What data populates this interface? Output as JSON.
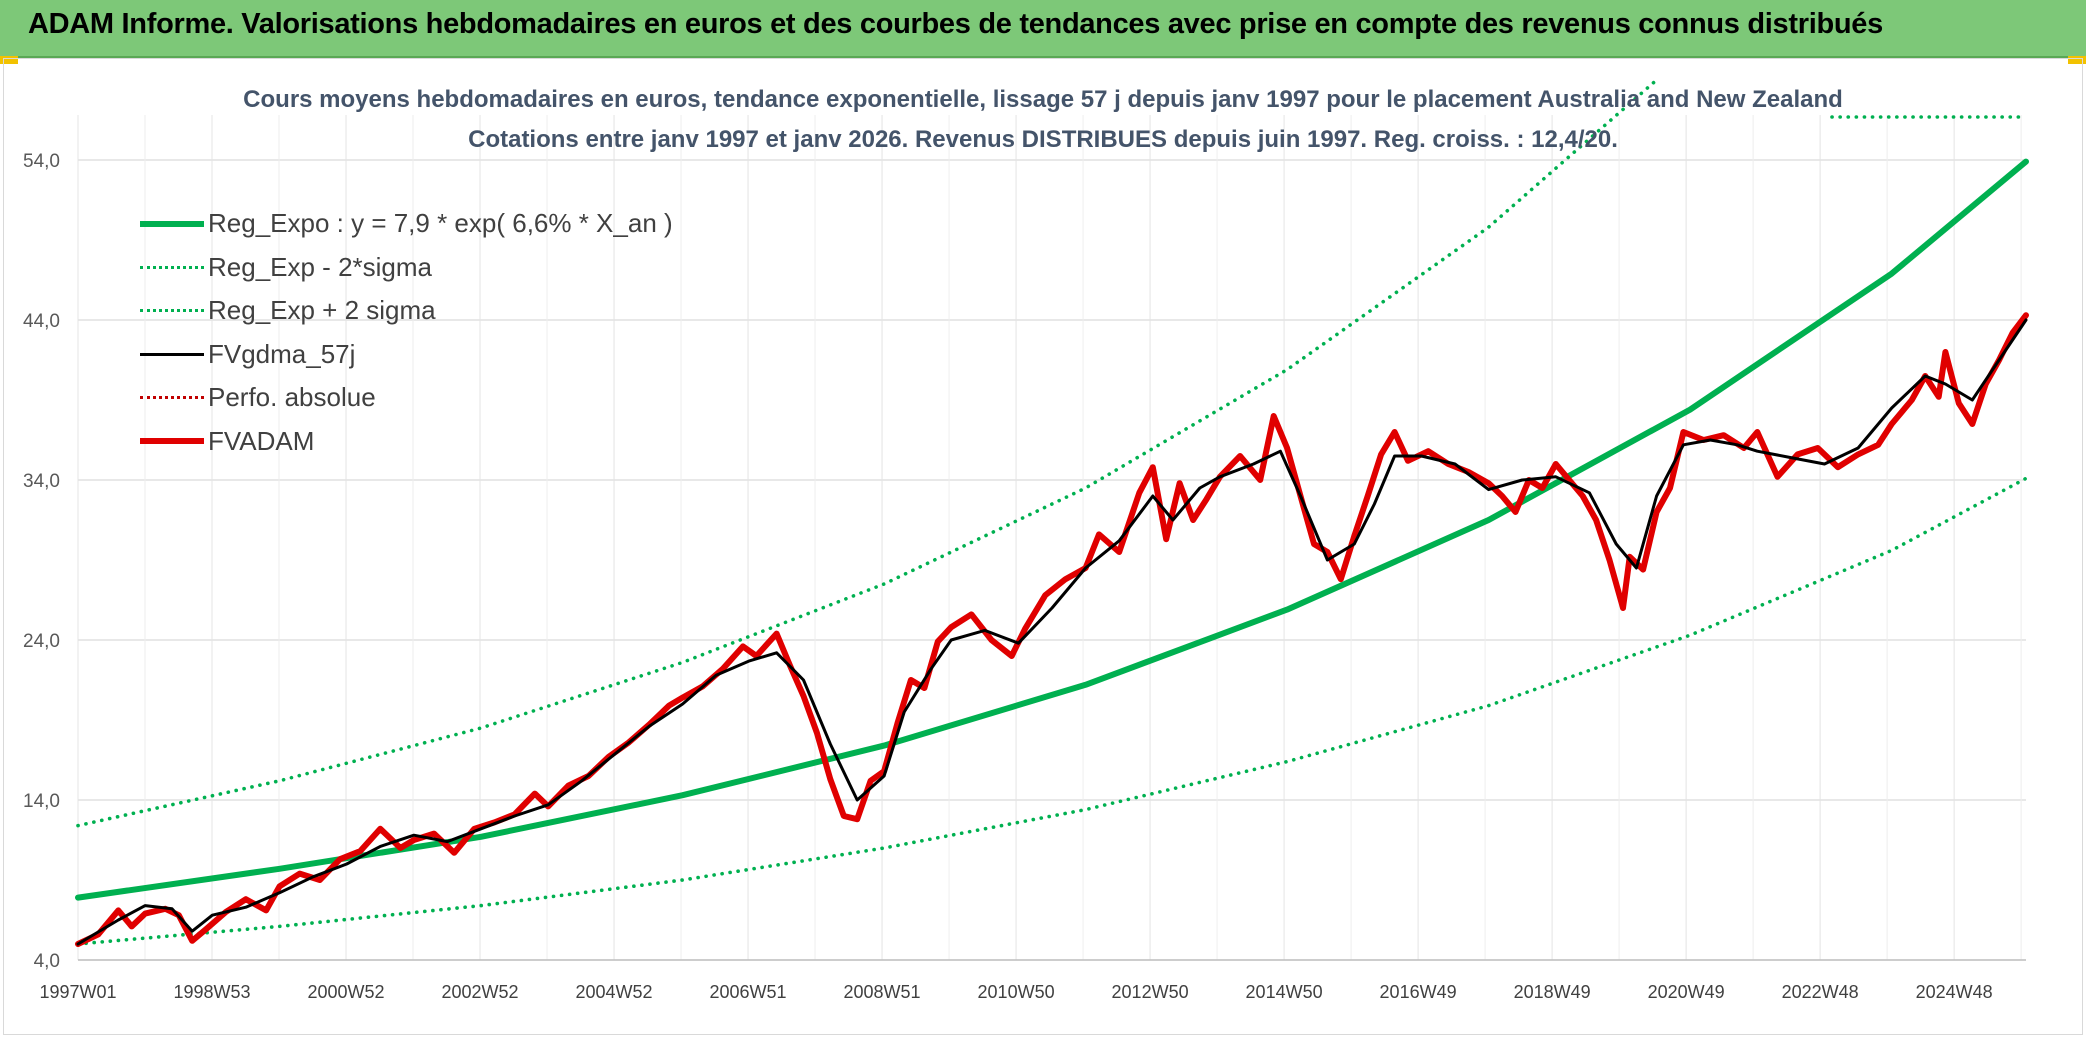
{
  "banner": {
    "title": "ADAM Informe. Valorisations hebdomadaires en euros et des courbes de tendances avec prise en compte des revenus connus distribués"
  },
  "chart_data": {
    "type": "line",
    "title": "Cours moyens hebdomadaires en euros, tendance exponentielle, lissage 57 j depuis janv 1997 pour le placement Australia and New Zealand",
    "subtitle": "Cotations entre janv 1997 et janv 2026. Revenus DISTRIBUES depuis juin 1997. Reg. croiss. : 12,4/20.",
    "xlabel": "",
    "ylabel": "",
    "x_ticks": [
      "1997W01",
      "1998W53",
      "2000W52",
      "2002W52",
      "2004W52",
      "2006W51",
      "2008W51",
      "2010W50",
      "2012W50",
      "2014W50",
      "2016W49",
      "2018W49",
      "2020W49",
      "2022W48",
      "2024W48"
    ],
    "x_range": [
      1997.0,
      2026.0
    ],
    "y_ticks": [
      "4,0",
      "14,0",
      "24,0",
      "34,0",
      "44,0",
      "54,0"
    ],
    "ylim": [
      4,
      57
    ],
    "grid": true,
    "legend_position": "top-left",
    "series": [
      {
        "name": "Reg_Expo : y = 7,9 * exp( 6,6% *  X_an )",
        "style": "solid-thick",
        "color": "#00b050",
        "x": [
          1997.0,
          2000.0,
          2003.0,
          2006.0,
          2009.0,
          2012.0,
          2015.0,
          2018.0,
          2021.0,
          2024.0,
          2026.0
        ],
        "values": [
          7.9,
          9.7,
          11.7,
          14.3,
          17.4,
          21.2,
          25.9,
          31.5,
          38.4,
          46.9,
          53.9
        ]
      },
      {
        "name": "Reg_Exp - 2*sigma",
        "style": "dotted",
        "color": "#00b050",
        "x": [
          1997.0,
          2000.0,
          2003.0,
          2006.0,
          2009.0,
          2012.0,
          2015.0,
          2018.0,
          2021.0,
          2024.0,
          2026.0
        ],
        "values": [
          5.0,
          6.1,
          7.4,
          9.0,
          11.0,
          13.4,
          16.4,
          19.9,
          24.3,
          29.6,
          34.1
        ]
      },
      {
        "name": "Reg_Exp + 2 sigma",
        "style": "dotted",
        "color": "#00b050",
        "x": [
          1997.0,
          2000.0,
          2003.0,
          2006.0,
          2009.0,
          2012.0,
          2015.0,
          2018.0,
          2020.5
        ],
        "values": [
          12.4,
          15.2,
          18.5,
          22.6,
          27.5,
          33.5,
          40.9,
          49.8,
          59.0
        ]
      },
      {
        "name": "FVgdma_57j",
        "style": "solid",
        "color": "#000000",
        "x": [
          1997.0,
          1997.6,
          1998.0,
          1998.4,
          1998.7,
          1999.0,
          1999.5,
          2000.0,
          2000.5,
          2001.0,
          2001.5,
          2002.0,
          2002.5,
          2003.0,
          2003.5,
          2004.0,
          2004.5,
          2005.0,
          2005.5,
          2006.0,
          2006.5,
          2007.0,
          2007.4,
          2007.8,
          2008.2,
          2008.6,
          2009.0,
          2009.3,
          2009.7,
          2010.0,
          2010.5,
          2011.0,
          2011.5,
          2012.0,
          2012.5,
          2013.0,
          2013.3,
          2013.7,
          2014.0,
          2014.5,
          2014.9,
          2015.2,
          2015.6,
          2016.0,
          2016.3,
          2016.6,
          2017.0,
          2017.5,
          2018.0,
          2018.5,
          2019.0,
          2019.5,
          2019.9,
          2020.2,
          2020.5,
          2020.9,
          2021.3,
          2021.7,
          2022.0,
          2022.5,
          2023.0,
          2023.5,
          2024.0,
          2024.5,
          2024.8,
          2025.2,
          2025.6,
          2026.0
        ],
        "values": [
          5.0,
          6.5,
          7.4,
          7.2,
          5.8,
          6.8,
          7.3,
          8.2,
          9.2,
          10.0,
          11.1,
          11.8,
          11.4,
          12.2,
          13.0,
          13.7,
          15.2,
          16.9,
          18.6,
          20.0,
          21.8,
          22.7,
          23.2,
          21.5,
          17.5,
          14.0,
          15.5,
          19.5,
          22.2,
          24.0,
          24.6,
          23.8,
          26.0,
          28.5,
          30.2,
          33.0,
          31.5,
          33.5,
          34.2,
          35.0,
          35.8,
          33.0,
          29.0,
          30.0,
          32.5,
          35.5,
          35.5,
          35.0,
          33.4,
          34.0,
          34.2,
          33.2,
          30.0,
          28.5,
          33.0,
          36.2,
          36.5,
          36.2,
          35.8,
          35.4,
          35.0,
          36.0,
          38.5,
          40.5,
          40.0,
          39.0,
          41.5,
          44.0
        ]
      },
      {
        "name": "Perfo. absolue",
        "style": "dotted",
        "color": "#c00000",
        "x": [],
        "values": []
      },
      {
        "name": "FVADAM",
        "style": "solid-thick",
        "color": "#e00000",
        "x": [
          1997.0,
          1997.3,
          1997.6,
          1997.8,
          1998.0,
          1998.3,
          1998.5,
          1998.7,
          1998.9,
          1999.2,
          1999.5,
          1999.8,
          2000.0,
          2000.3,
          2000.6,
          2000.9,
          2001.2,
          2001.5,
          2001.8,
          2002.0,
          2002.3,
          2002.6,
          2002.9,
          2003.2,
          2003.5,
          2003.8,
          2004.0,
          2004.3,
          2004.6,
          2004.9,
          2005.2,
          2005.5,
          2005.8,
          2006.0,
          2006.3,
          2006.6,
          2006.9,
          2007.1,
          2007.4,
          2007.6,
          2007.8,
          2008.0,
          2008.2,
          2008.4,
          2008.6,
          2008.8,
          2009.0,
          2009.2,
          2009.4,
          2009.6,
          2009.8,
          2010.0,
          2010.3,
          2010.6,
          2010.9,
          2011.1,
          2011.4,
          2011.7,
          2012.0,
          2012.2,
          2012.5,
          2012.8,
          2013.0,
          2013.2,
          2013.4,
          2013.6,
          2013.8,
          2014.0,
          2014.3,
          2014.6,
          2014.8,
          2015.0,
          2015.2,
          2015.4,
          2015.6,
          2015.8,
          2016.0,
          2016.2,
          2016.4,
          2016.6,
          2016.8,
          2017.1,
          2017.4,
          2017.7,
          2018.0,
          2018.2,
          2018.4,
          2018.6,
          2018.8,
          2019.0,
          2019.2,
          2019.4,
          2019.6,
          2019.8,
          2020.0,
          2020.1,
          2020.3,
          2020.5,
          2020.7,
          2020.9,
          2021.2,
          2021.5,
          2021.8,
          2022.0,
          2022.3,
          2022.6,
          2022.9,
          2023.2,
          2023.5,
          2023.8,
          2024.0,
          2024.3,
          2024.5,
          2024.7,
          2024.8,
          2025.0,
          2025.2,
          2025.4,
          2025.6,
          2025.8,
          2026.0
        ],
        "values": [
          5.0,
          5.6,
          7.1,
          6.1,
          6.9,
          7.2,
          6.8,
          5.2,
          5.9,
          7.0,
          7.8,
          7.1,
          8.6,
          9.4,
          9.0,
          10.3,
          10.8,
          12.2,
          11.0,
          11.5,
          11.9,
          10.7,
          12.2,
          12.6,
          13.1,
          14.4,
          13.6,
          14.9,
          15.5,
          16.7,
          17.6,
          18.7,
          19.9,
          20.4,
          21.1,
          22.2,
          23.6,
          23.0,
          24.4,
          22.4,
          20.5,
          18.2,
          15.3,
          13.0,
          12.8,
          15.2,
          15.8,
          18.8,
          21.5,
          21.0,
          23.9,
          24.8,
          25.6,
          24.0,
          23.0,
          24.7,
          26.8,
          27.8,
          28.5,
          30.6,
          29.5,
          33.2,
          34.8,
          30.3,
          33.8,
          31.5,
          32.8,
          34.2,
          35.5,
          34.0,
          38.0,
          36.0,
          33.0,
          30.0,
          29.5,
          27.8,
          30.5,
          33.0,
          35.6,
          37.0,
          35.2,
          35.8,
          35.0,
          34.5,
          33.8,
          33.0,
          32.0,
          34.0,
          33.5,
          35.0,
          34.0,
          33.0,
          31.5,
          29.0,
          26.0,
          29.2,
          28.4,
          32.0,
          33.5,
          37.0,
          36.5,
          36.8,
          36.0,
          37.0,
          34.2,
          35.6,
          36.0,
          34.8,
          35.6,
          36.2,
          37.5,
          39.0,
          40.5,
          39.2,
          42.0,
          38.8,
          37.5,
          40.0,
          41.5,
          43.2,
          44.3
        ]
      }
    ]
  }
}
